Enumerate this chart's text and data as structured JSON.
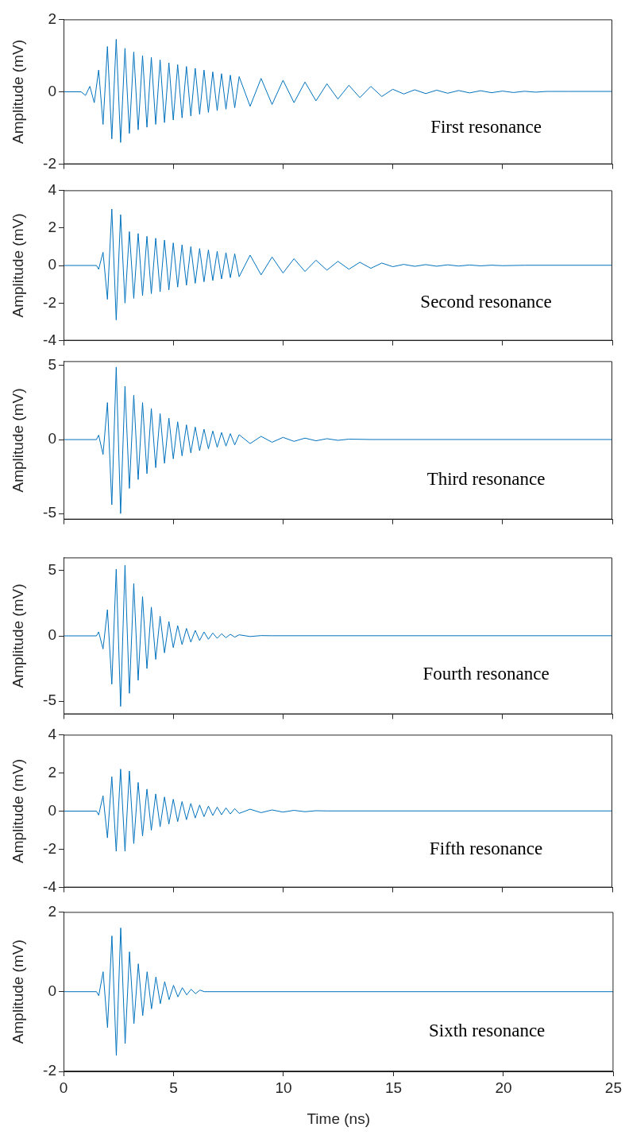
{
  "chart_data": [
    {
      "type": "line",
      "ylabel": "Amplitude (mV)",
      "annotations": [
        "First resonance"
      ],
      "xlim": [
        0,
        25
      ],
      "xticks": [
        0,
        5,
        10,
        15,
        20,
        25
      ],
      "ylim": [
        -2,
        2
      ],
      "yticks": [
        -2,
        0,
        2
      ],
      "tick_labels": "y",
      "series": [
        {
          "color": "#0072bd",
          "x": [
            0,
            0.8,
            1,
            1.2,
            1.4,
            1.6,
            1.8,
            2,
            2.2,
            2.4,
            2.6,
            2.8,
            3,
            3.2,
            3.4,
            3.6,
            3.8,
            4,
            4.2,
            4.4,
            4.6,
            4.8,
            5,
            5.2,
            5.4,
            5.6,
            5.8,
            6,
            6.2,
            6.4,
            6.6,
            6.8,
            7,
            7.2,
            7.4,
            7.6,
            7.8,
            8,
            8.5,
            9,
            9.5,
            10,
            10.5,
            11,
            11.5,
            12,
            12.5,
            13,
            13.5,
            14,
            14.5,
            15,
            15.5,
            16,
            16.5,
            17,
            17.5,
            18,
            18.5,
            19,
            19.5,
            20,
            20.5,
            21,
            21.5,
            22,
            23,
            25
          ],
          "values": [
            0,
            0,
            -0.1,
            0.15,
            -0.3,
            0.6,
            -0.9,
            1.25,
            -1.3,
            1.45,
            -1.4,
            1.2,
            -1.15,
            1.1,
            -1.05,
            1.0,
            -0.98,
            0.95,
            -0.9,
            0.88,
            -0.85,
            0.8,
            -0.78,
            0.75,
            -0.72,
            0.7,
            -0.67,
            0.65,
            -0.62,
            0.6,
            -0.57,
            0.55,
            -0.52,
            0.5,
            -0.48,
            0.46,
            -0.44,
            0.42,
            -0.4,
            0.37,
            -0.35,
            0.32,
            -0.3,
            0.27,
            -0.25,
            0.22,
            -0.2,
            0.18,
            -0.16,
            0.15,
            -0.13,
            0.07,
            -0.06,
            0.055,
            -0.05,
            0.045,
            -0.04,
            0.035,
            -0.03,
            0.03,
            -0.025,
            0.02,
            -0.02,
            0.015,
            -0.01,
            0.01,
            0.01,
            0.01
          ]
        }
      ]
    },
    {
      "type": "line",
      "ylabel": "Amplitude (mV)",
      "annotations": [
        "Second resonance"
      ],
      "xlim": [
        0,
        25
      ],
      "xticks": [
        0,
        5,
        10,
        15,
        20,
        25
      ],
      "ylim": [
        -4,
        4
      ],
      "yticks": [
        -4,
        -2,
        0,
        2,
        4
      ],
      "tick_labels": "y",
      "series": [
        {
          "color": "#0072bd",
          "x": [
            0,
            1.5,
            1.6,
            1.8,
            2,
            2.2,
            2.4,
            2.6,
            2.8,
            3,
            3.2,
            3.4,
            3.6,
            3.8,
            4,
            4.2,
            4.4,
            4.6,
            4.8,
            5,
            5.2,
            5.4,
            5.6,
            5.8,
            6,
            6.2,
            6.4,
            6.6,
            6.8,
            7,
            7.2,
            7.4,
            7.6,
            7.8,
            8,
            8.5,
            9,
            9.5,
            10,
            10.5,
            11,
            11.5,
            12,
            12.5,
            13,
            13.5,
            14,
            14.5,
            15,
            15.5,
            16,
            16.5,
            17,
            17.5,
            18,
            18.5,
            19,
            19.5,
            20,
            21,
            25
          ],
          "values": [
            0,
            0,
            -0.2,
            0.7,
            -1.8,
            3.0,
            -2.9,
            2.7,
            -2.0,
            1.8,
            -1.75,
            1.7,
            -1.6,
            1.55,
            -1.5,
            1.45,
            -1.4,
            1.35,
            -1.3,
            1.2,
            -1.15,
            1.1,
            -1.05,
            1.0,
            -0.95,
            0.9,
            -0.87,
            0.83,
            -0.8,
            0.75,
            -0.72,
            0.68,
            -0.65,
            0.62,
            -0.6,
            0.55,
            -0.5,
            0.45,
            -0.4,
            0.36,
            -0.32,
            0.28,
            -0.25,
            0.22,
            -0.2,
            0.17,
            -0.15,
            0.13,
            -0.065,
            0.058,
            -0.045,
            0.046,
            -0.04,
            0.035,
            -0.03,
            0.025,
            -0.02,
            0.015,
            -0.01,
            0.01,
            0.01
          ]
        }
      ]
    },
    {
      "type": "line",
      "ylabel": "Amplitude (mV)",
      "annotations": [
        "Third resonance"
      ],
      "xlim": [
        0,
        25
      ],
      "xticks": [
        0,
        5,
        10,
        15,
        20,
        25
      ],
      "ylim": [
        -5.4,
        5.3
      ],
      "yticks": [
        -5,
        0,
        5
      ],
      "tick_labels": "y",
      "series": [
        {
          "color": "#0072bd",
          "x": [
            0,
            1.5,
            1.6,
            1.8,
            2,
            2.2,
            2.4,
            2.6,
            2.8,
            3,
            3.2,
            3.4,
            3.6,
            3.8,
            4,
            4.2,
            4.4,
            4.6,
            4.8,
            5,
            5.2,
            5.4,
            5.6,
            5.8,
            6,
            6.2,
            6.4,
            6.6,
            6.8,
            7,
            7.2,
            7.4,
            7.6,
            7.8,
            8,
            8.5,
            9,
            9.5,
            10,
            10.5,
            11,
            11.5,
            12,
            12.5,
            13,
            14,
            25
          ],
          "values": [
            0,
            0,
            0.3,
            -1.0,
            2.5,
            -4.4,
            4.9,
            -5.0,
            3.6,
            -3.3,
            3.0,
            -2.7,
            2.5,
            -2.3,
            2.1,
            -1.9,
            1.75,
            -1.6,
            1.45,
            -1.3,
            1.2,
            -1.1,
            1.0,
            -0.9,
            0.85,
            -0.75,
            0.7,
            -0.62,
            0.58,
            -0.52,
            0.48,
            -0.44,
            0.4,
            -0.36,
            0.33,
            -0.27,
            0.22,
            -0.18,
            0.15,
            -0.12,
            0.1,
            -0.08,
            0.06,
            -0.05,
            0.03,
            0.005,
            0.005
          ]
        }
      ]
    },
    {
      "type": "line",
      "ylabel": "Amplitude (mV)",
      "annotations": [
        "Fourth resonance"
      ],
      "xlim": [
        0,
        25
      ],
      "xticks": [
        0,
        5,
        10,
        15,
        20,
        25
      ],
      "ylim": [
        -6,
        6
      ],
      "yticks": [
        -5,
        0,
        5
      ],
      "tick_labels": "y",
      "series": [
        {
          "color": "#0072bd",
          "x": [
            0,
            1.5,
            1.6,
            1.8,
            2,
            2.2,
            2.4,
            2.6,
            2.8,
            3,
            3.2,
            3.4,
            3.6,
            3.8,
            4,
            4.2,
            4.4,
            4.6,
            4.8,
            5,
            5.2,
            5.4,
            5.6,
            5.8,
            6,
            6.2,
            6.4,
            6.6,
            6.8,
            7,
            7.2,
            7.4,
            7.6,
            7.8,
            8,
            8.5,
            9,
            9.5,
            25
          ],
          "values": [
            0,
            0,
            0.3,
            -1.0,
            2.0,
            -3.7,
            5.1,
            -5.4,
            5.4,
            -4.4,
            4.0,
            -3.4,
            3.0,
            -2.5,
            2.2,
            -1.8,
            1.5,
            -1.3,
            1.1,
            -0.9,
            0.78,
            -0.67,
            0.57,
            -0.48,
            0.42,
            -0.36,
            0.3,
            -0.26,
            0.22,
            -0.19,
            0.16,
            -0.14,
            0.12,
            -0.1,
            0.08,
            -0.05,
            0.02,
            0.01,
            0.01
          ]
        }
      ]
    },
    {
      "type": "line",
      "ylabel": "Amplitude (mV)",
      "annotations": [
        "Fifth resonance"
      ],
      "xlim": [
        0,
        25
      ],
      "xticks": [
        0,
        5,
        10,
        15,
        20,
        25
      ],
      "ylim": [
        -4,
        4
      ],
      "yticks": [
        -4,
        -2,
        0,
        2,
        4
      ],
      "tick_labels": "y",
      "series": [
        {
          "color": "#0072bd",
          "x": [
            0,
            1.5,
            1.6,
            1.8,
            2,
            2.2,
            2.4,
            2.6,
            2.8,
            3,
            3.2,
            3.4,
            3.6,
            3.8,
            4,
            4.2,
            4.4,
            4.6,
            4.8,
            5,
            5.2,
            5.4,
            5.6,
            5.8,
            6,
            6.2,
            6.4,
            6.6,
            6.8,
            7,
            7.2,
            7.4,
            7.6,
            7.8,
            8,
            8.5,
            9,
            9.5,
            10,
            10.5,
            11,
            11.5,
            12,
            25
          ],
          "values": [
            0,
            0,
            -0.2,
            0.8,
            -1.4,
            1.8,
            -2.1,
            2.2,
            -2.1,
            2.1,
            -1.7,
            1.5,
            -1.3,
            1.15,
            -1.0,
            0.9,
            -0.82,
            0.74,
            -0.68,
            0.62,
            -0.55,
            0.5,
            -0.45,
            0.4,
            -0.36,
            0.32,
            -0.29,
            0.26,
            -0.23,
            0.21,
            -0.19,
            0.17,
            -0.15,
            0.13,
            -0.12,
            0.1,
            -0.08,
            0.06,
            -0.05,
            0.04,
            -0.03,
            0.02,
            0.01,
            0.01
          ]
        }
      ]
    },
    {
      "type": "line",
      "ylabel": "Amplitude (mV)",
      "xlabel": "Time (ns)",
      "annotations": [
        "Sixth resonance"
      ],
      "xlim": [
        0,
        25
      ],
      "xticks": [
        0,
        5,
        10,
        15,
        20,
        25
      ],
      "ylim": [
        -2,
        2
      ],
      "yticks": [
        -2,
        0,
        2
      ],
      "series": [
        {
          "color": "#0072bd",
          "x": [
            0,
            1.5,
            1.6,
            1.8,
            2,
            2.2,
            2.4,
            2.6,
            2.8,
            3,
            3.2,
            3.4,
            3.6,
            3.8,
            4,
            4.2,
            4.4,
            4.6,
            4.8,
            5,
            5.2,
            5.4,
            5.6,
            5.8,
            6,
            6.2,
            6.4,
            25
          ],
          "values": [
            0,
            0,
            -0.1,
            0.5,
            -0.9,
            1.4,
            -1.6,
            1.6,
            -1.3,
            1.0,
            -0.8,
            0.7,
            -0.6,
            0.5,
            -0.43,
            0.37,
            -0.3,
            0.25,
            -0.2,
            0.16,
            -0.13,
            0.1,
            -0.08,
            0.06,
            -0.05,
            0.04,
            0,
            0
          ]
        }
      ]
    }
  ]
}
